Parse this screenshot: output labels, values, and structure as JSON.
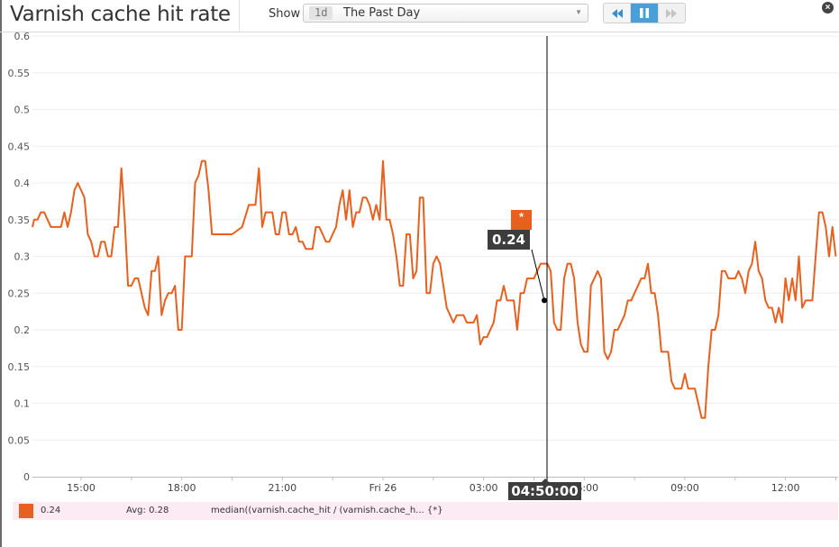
{
  "header": {
    "title": "Varnish cache hit rate",
    "show_label": "Show",
    "timeframe": {
      "badge": "1d",
      "label": "The Past Day"
    },
    "playback": {
      "rewind_icon": "rewind-icon",
      "pause_icon": "pause-icon",
      "forward_icon": "fast-forward-icon"
    },
    "close_icon": "close-icon"
  },
  "cursor": {
    "time": "04:50:00",
    "value": "0.24",
    "series_marker": "*"
  },
  "legend": {
    "color": "#e8601f",
    "value": "0.24",
    "avg": "Avg: 0.28",
    "query": "median((varnish.cache_hit / (varnish.cache_h... {*}"
  },
  "chart_data": {
    "type": "line",
    "title": "Varnish cache hit rate",
    "xlabel": "",
    "ylabel": "",
    "ylim": [
      0,
      0.6
    ],
    "yticks": [
      0,
      0.05,
      0.1,
      0.15,
      0.2,
      0.25,
      0.3,
      0.35,
      0.4,
      0.45,
      0.5,
      0.55,
      0.6
    ],
    "ytick_labels": [
      "0",
      "0.05",
      "0.1",
      "0.15",
      "0.2",
      "0.25",
      "0.3",
      "0.35",
      "0.4",
      "0.45",
      "0.5",
      "0.55",
      "0.6"
    ],
    "xtick_labels": [
      "15:00",
      "18:00",
      "21:00",
      "Fri 26",
      "03:00",
      "06:00",
      "09:00",
      "12:00"
    ],
    "grid": true,
    "legend_position": "bottom",
    "series": [
      {
        "name": "median((varnish.cache_hit / (varnish.cache_h... {*}",
        "color": "#e8601f",
        "x_hours_from_1500": [
          -1.45,
          -1.4,
          -1.3,
          -1.2,
          -1.1,
          -1.0,
          -0.9,
          -0.75,
          -0.6,
          -0.5,
          -0.4,
          -0.3,
          -0.2,
          -0.1,
          0.0,
          0.1,
          0.2,
          0.3,
          0.4,
          0.5,
          0.6,
          0.7,
          0.8,
          0.9,
          1.0,
          1.1,
          1.2,
          1.3,
          1.4,
          1.5,
          1.6,
          1.7,
          1.8,
          1.9,
          2.0,
          2.1,
          2.2,
          2.3,
          2.4,
          2.5,
          2.6,
          2.7,
          2.8,
          2.9,
          3.0,
          3.1,
          3.2,
          3.3,
          3.4,
          3.5,
          3.6,
          3.7,
          3.8,
          3.9,
          4.0,
          4.2,
          4.5,
          4.8,
          5.0,
          5.1,
          5.2,
          5.3,
          5.4,
          5.5,
          5.6,
          5.7,
          5.8,
          5.9,
          6.0,
          6.1,
          6.2,
          6.3,
          6.4,
          6.5,
          6.6,
          6.7,
          6.8,
          6.9,
          7.0,
          7.1,
          7.2,
          7.3,
          7.4,
          7.5,
          7.6,
          7.7,
          7.8,
          7.9,
          8.0,
          8.1,
          8.2,
          8.3,
          8.4,
          8.5,
          8.6,
          8.7,
          8.8,
          8.9,
          9.0,
          9.1,
          9.2,
          9.3,
          9.4,
          9.5,
          9.6,
          9.7,
          9.8,
          9.9,
          10.0,
          10.1,
          10.2,
          10.3,
          10.4,
          10.5,
          10.6,
          10.7,
          10.8,
          10.9,
          11.0,
          11.1,
          11.2,
          11.3,
          11.4,
          11.5,
          11.6,
          11.7,
          11.8,
          11.9,
          12.0,
          12.1,
          12.2,
          12.3,
          12.4,
          12.5,
          12.6,
          12.7,
          12.8,
          12.9,
          13.0,
          13.1,
          13.2,
          13.3,
          13.4,
          13.5,
          13.6,
          13.7,
          13.8,
          13.9,
          14.0,
          14.1,
          14.2,
          14.3,
          14.4,
          14.5,
          14.6,
          14.7,
          14.8,
          14.9,
          15.0,
          15.1,
          15.2,
          15.3,
          15.4,
          15.5,
          15.6,
          15.7,
          15.8,
          15.9,
          16.0,
          16.1,
          16.2,
          16.3,
          16.4,
          16.5,
          16.6,
          16.7,
          16.8,
          16.9,
          17.0,
          17.1,
          17.2,
          17.3,
          17.4,
          17.5,
          17.6,
          17.7,
          17.8,
          17.9,
          18.0,
          18.1,
          18.2,
          18.3,
          18.4,
          18.5,
          18.6,
          18.7,
          18.8,
          18.9,
          19.0,
          19.1,
          19.2,
          19.3,
          19.4,
          19.5,
          19.6,
          19.7,
          19.8,
          19.9,
          20.0,
          20.1,
          20.2,
          20.3,
          20.4,
          20.5,
          20.6,
          20.7,
          20.8,
          20.9,
          21.0,
          21.1,
          21.2,
          21.3,
          21.4,
          21.5,
          21.6,
          21.7,
          21.8,
          21.9,
          22.0,
          22.1,
          22.2,
          22.3,
          22.4,
          22.5
        ],
        "values": [
          0.34,
          0.35,
          0.35,
          0.36,
          0.36,
          0.35,
          0.34,
          0.34,
          0.34,
          0.36,
          0.34,
          0.36,
          0.39,
          0.4,
          0.39,
          0.38,
          0.33,
          0.32,
          0.3,
          0.3,
          0.32,
          0.32,
          0.3,
          0.3,
          0.34,
          0.34,
          0.42,
          0.35,
          0.26,
          0.26,
          0.27,
          0.27,
          0.25,
          0.23,
          0.22,
          0.28,
          0.28,
          0.3,
          0.22,
          0.24,
          0.25,
          0.25,
          0.26,
          0.2,
          0.2,
          0.3,
          0.3,
          0.3,
          0.4,
          0.41,
          0.43,
          0.43,
          0.39,
          0.33,
          0.33,
          0.33,
          0.33,
          0.34,
          0.37,
          0.37,
          0.37,
          0.42,
          0.34,
          0.36,
          0.36,
          0.36,
          0.33,
          0.33,
          0.36,
          0.36,
          0.33,
          0.33,
          0.34,
          0.32,
          0.32,
          0.31,
          0.31,
          0.31,
          0.34,
          0.34,
          0.33,
          0.32,
          0.32,
          0.33,
          0.34,
          0.37,
          0.39,
          0.35,
          0.39,
          0.34,
          0.36,
          0.36,
          0.38,
          0.38,
          0.37,
          0.35,
          0.37,
          0.35,
          0.43,
          0.35,
          0.35,
          0.33,
          0.3,
          0.26,
          0.26,
          0.33,
          0.33,
          0.27,
          0.28,
          0.38,
          0.38,
          0.25,
          0.25,
          0.29,
          0.3,
          0.29,
          0.26,
          0.23,
          0.22,
          0.21,
          0.22,
          0.22,
          0.22,
          0.21,
          0.21,
          0.21,
          0.22,
          0.18,
          0.19,
          0.19,
          0.2,
          0.21,
          0.24,
          0.24,
          0.26,
          0.24,
          0.24,
          0.24,
          0.2,
          0.25,
          0.25,
          0.27,
          0.27,
          0.27,
          0.28,
          0.29,
          0.29,
          0.29,
          0.28,
          0.21,
          0.2,
          0.2,
          0.27,
          0.29,
          0.29,
          0.27,
          0.21,
          0.18,
          0.17,
          0.17,
          0.26,
          0.27,
          0.28,
          0.27,
          0.17,
          0.16,
          0.17,
          0.2,
          0.2,
          0.21,
          0.22,
          0.24,
          0.24,
          0.25,
          0.26,
          0.27,
          0.27,
          0.29,
          0.25,
          0.25,
          0.22,
          0.17,
          0.17,
          0.17,
          0.13,
          0.12,
          0.12,
          0.12,
          0.14,
          0.12,
          0.12,
          0.12,
          0.1,
          0.08,
          0.08,
          0.15,
          0.2,
          0.2,
          0.22,
          0.28,
          0.28,
          0.27,
          0.27,
          0.27,
          0.28,
          0.27,
          0.25,
          0.28,
          0.29,
          0.32,
          0.28,
          0.27,
          0.24,
          0.23,
          0.23,
          0.21,
          0.23,
          0.21,
          0.27,
          0.24,
          0.27,
          0.24,
          0.3,
          0.23,
          0.24,
          0.24,
          0.24,
          0.3,
          0.36,
          0.36,
          0.34,
          0.3,
          0.34,
          0.3,
          0.3,
          0.25,
          0.25,
          0.29,
          0.29,
          0.29,
          0.28,
          0.28,
          0.29,
          0.25,
          0.22
        ]
      }
    ],
    "cursor": {
      "time": "04:50:00",
      "value": 0.24
    }
  }
}
